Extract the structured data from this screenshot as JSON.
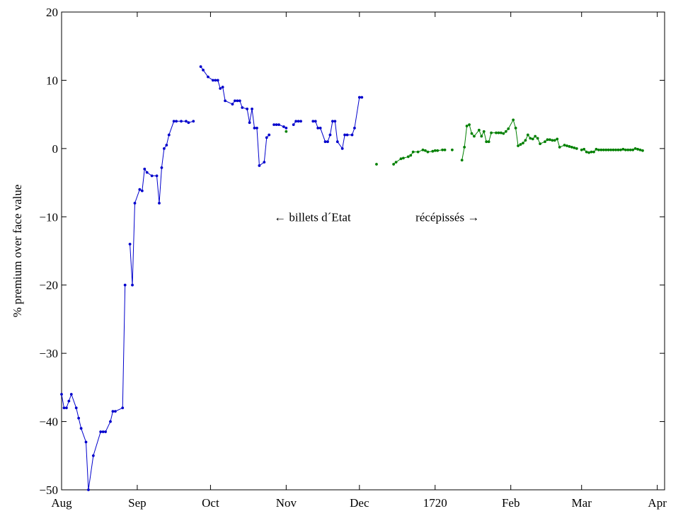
{
  "chart_data": {
    "type": "line",
    "title": "",
    "xlabel": "",
    "ylabel": "% premium over face value",
    "ylim": [
      -50,
      20
    ],
    "yticks": [
      -50,
      -40,
      -30,
      -20,
      -10,
      0,
      10,
      20
    ],
    "xlim": [
      "1719-08-01",
      "1720-04-04"
    ],
    "xticks": [
      {
        "date": "1719-08-01",
        "label": "Aug"
      },
      {
        "date": "1719-09-01",
        "label": "Sep"
      },
      {
        "date": "1719-10-01",
        "label": "Oct"
      },
      {
        "date": "1719-11-01",
        "label": "Nov"
      },
      {
        "date": "1719-12-01",
        "label": "Dec"
      },
      {
        "date": "1720-01-01",
        "label": "1720"
      },
      {
        "date": "1720-02-01",
        "label": "Feb"
      },
      {
        "date": "1720-03-01",
        "label": "Mar"
      },
      {
        "date": "1720-04-01",
        "label": "Apr"
      }
    ],
    "grid": false,
    "annotations": [
      {
        "text": "← billets d´Etat",
        "x": "1719-10-27",
        "y": -10
      },
      {
        "text": "récépissés →",
        "x": "1719-12-24",
        "y": -10
      }
    ],
    "series": [
      {
        "name": "",
        "color": "#0000cc",
        "segments": [
          [
            [
              "1719-08-01",
              -36
            ],
            [
              "1719-08-02",
              -38
            ],
            [
              "1719-08-03",
              -38
            ],
            [
              "1719-08-04",
              -37
            ],
            [
              "1719-08-05",
              -36
            ],
            [
              "1719-08-07",
              -38
            ],
            [
              "1719-08-08",
              -39.5
            ],
            [
              "1719-08-09",
              -41
            ],
            [
              "1719-08-11",
              -43
            ],
            [
              "1719-08-12",
              -50
            ],
            [
              "1719-08-14",
              -45
            ],
            [
              "1719-08-17",
              -41.5
            ],
            [
              "1719-08-18",
              -41.5
            ],
            [
              "1719-08-19",
              -41.5
            ],
            [
              "1719-08-21",
              -40
            ],
            [
              "1719-08-22",
              -38.5
            ],
            [
              "1719-08-23",
              -38.5
            ],
            [
              "1719-08-26",
              -38
            ],
            [
              "1719-08-27",
              -20
            ]
          ],
          [
            [
              "1719-08-29",
              -14
            ],
            [
              "1719-08-30",
              -20
            ],
            [
              "1719-08-31",
              -8
            ],
            [
              "1719-09-02",
              -6
            ],
            [
              "1719-09-03",
              -6.2
            ],
            [
              "1719-09-04",
              -3
            ],
            [
              "1719-09-05",
              -3.5
            ],
            [
              "1719-09-07",
              -4
            ],
            [
              "1719-09-09",
              -4
            ],
            [
              "1719-09-10",
              -8
            ],
            [
              "1719-09-11",
              -2.8
            ],
            [
              "1719-09-12",
              0
            ],
            [
              "1719-09-13",
              0.5
            ],
            [
              "1719-09-14",
              2
            ],
            [
              "1719-09-16",
              4
            ],
            [
              "1719-09-17",
              4
            ],
            [
              "1719-09-19",
              4
            ],
            [
              "1719-09-21",
              4
            ],
            [
              "1719-09-22",
              3.8
            ],
            [
              "1719-09-24",
              4
            ]
          ],
          [
            [
              "1719-09-27",
              12
            ],
            [
              "1719-09-28",
              11.5
            ],
            [
              "1719-09-30",
              10.5
            ],
            [
              "1719-10-02",
              10
            ],
            [
              "1719-10-03",
              10
            ],
            [
              "1719-10-04",
              10
            ],
            [
              "1719-10-05",
              8.8
            ],
            [
              "1719-10-06",
              9
            ],
            [
              "1719-10-07",
              7
            ],
            [
              "1719-10-10",
              6.5
            ],
            [
              "1719-10-11",
              7
            ],
            [
              "1719-10-12",
              7
            ],
            [
              "1719-10-13",
              7
            ],
            [
              "1719-10-14",
              6
            ],
            [
              "1719-10-16",
              5.8
            ],
            [
              "1719-10-17",
              3.8
            ],
            [
              "1719-10-18",
              5.8
            ],
            [
              "1719-10-19",
              3
            ],
            [
              "1719-10-20",
              3
            ],
            [
              "1719-10-21",
              -2.5
            ],
            [
              "1719-10-23",
              -2
            ],
            [
              "1719-10-24",
              1.6
            ],
            [
              "1719-10-25",
              2
            ]
          ],
          [
            [
              "1719-10-27",
              3.5
            ],
            [
              "1719-10-28",
              3.5
            ],
            [
              "1719-10-29",
              3.5
            ],
            [
              "1719-10-31",
              3.2
            ],
            [
              "1719-11-01",
              3
            ]
          ],
          [
            [
              "1719-11-04",
              3.5
            ],
            [
              "1719-11-05",
              4
            ],
            [
              "1719-11-06",
              4
            ],
            [
              "1719-11-07",
              4
            ]
          ],
          [
            [
              "1719-11-12",
              4
            ],
            [
              "1719-11-13",
              4
            ],
            [
              "1719-11-14",
              3
            ],
            [
              "1719-11-15",
              3
            ],
            [
              "1719-11-17",
              1
            ],
            [
              "1719-11-18",
              1
            ],
            [
              "1719-11-19",
              2
            ],
            [
              "1719-11-20",
              4
            ],
            [
              "1719-11-21",
              4
            ],
            [
              "1719-11-22",
              1
            ],
            [
              "1719-11-24",
              0
            ],
            [
              "1719-11-25",
              2
            ],
            [
              "1719-11-26",
              2
            ],
            [
              "1719-11-28",
              2
            ],
            [
              "1719-11-29",
              3
            ],
            [
              "1719-12-01",
              7.5
            ],
            [
              "1719-12-02",
              7.5
            ]
          ]
        ]
      },
      {
        "name": "",
        "color": "#008000",
        "segments": [
          [
            [
              "1719-11-01",
              2.5
            ]
          ],
          [
            [
              "1719-12-08",
              -2.3
            ]
          ],
          [
            [
              "1719-12-15",
              -2.3
            ],
            [
              "1719-12-16",
              -2
            ],
            [
              "1719-12-18",
              -1.5
            ],
            [
              "1719-12-19",
              -1.4
            ],
            [
              "1719-12-21",
              -1.2
            ],
            [
              "1719-12-22",
              -1
            ],
            [
              "1719-12-23",
              -0.5
            ],
            [
              "1719-12-25",
              -0.5
            ],
            [
              "1719-12-27",
              -0.2
            ],
            [
              "1719-12-28",
              -0.3
            ],
            [
              "1719-12-29",
              -0.5
            ],
            [
              "1719-12-31",
              -0.4
            ],
            [
              "1720-01-01",
              -0.3
            ],
            [
              "1720-01-02",
              -0.3
            ],
            [
              "1720-01-04",
              -0.2
            ],
            [
              "1720-01-05",
              -0.2
            ]
          ],
          [
            [
              "1720-01-08",
              -0.2
            ]
          ],
          [
            [
              "1720-01-12",
              -1.7
            ],
            [
              "1720-01-13",
              0.2
            ],
            [
              "1720-01-14",
              3.3
            ],
            [
              "1720-01-15",
              3.5
            ],
            [
              "1720-01-16",
              2.2
            ],
            [
              "1720-01-17",
              1.8
            ],
            [
              "1720-01-19",
              2.7
            ],
            [
              "1720-01-20",
              1.8
            ],
            [
              "1720-01-21",
              2.5
            ],
            [
              "1720-01-22",
              1
            ],
            [
              "1720-01-23",
              1
            ],
            [
              "1720-01-24",
              2.3
            ],
            [
              "1720-01-26",
              2.3
            ],
            [
              "1720-01-27",
              2.3
            ],
            [
              "1720-01-28",
              2.3
            ],
            [
              "1720-01-29",
              2.2
            ],
            [
              "1720-01-30",
              2.5
            ],
            [
              "1720-01-31",
              2.9
            ],
            [
              "1720-02-02",
              4.2
            ],
            [
              "1720-02-03",
              3
            ],
            [
              "1720-02-04",
              0.4
            ],
            [
              "1720-02-05",
              0.6
            ],
            [
              "1720-02-06",
              0.8
            ],
            [
              "1720-02-07",
              1.2
            ],
            [
              "1720-02-08",
              2
            ],
            [
              "1720-02-09",
              1.5
            ],
            [
              "1720-02-10",
              1.4
            ],
            [
              "1720-02-11",
              1.8
            ],
            [
              "1720-02-12",
              1.5
            ],
            [
              "1720-02-13",
              0.7
            ],
            [
              "1720-02-15",
              1
            ],
            [
              "1720-02-16",
              1.3
            ],
            [
              "1720-02-17",
              1.3
            ],
            [
              "1720-02-18",
              1.2
            ],
            [
              "1720-02-19",
              1.2
            ],
            [
              "1720-02-20",
              1.4
            ],
            [
              "1720-02-21",
              0.2
            ],
            [
              "1720-02-23",
              0.5
            ],
            [
              "1720-02-24",
              0.4
            ],
            [
              "1720-02-25",
              0.3
            ],
            [
              "1720-02-26",
              0.2
            ],
            [
              "1720-02-27",
              0.1
            ],
            [
              "1720-02-28",
              0
            ]
          ],
          [
            [
              "1720-03-01",
              -0.2
            ],
            [
              "1720-03-02",
              -0.1
            ],
            [
              "1720-03-03",
              -0.5
            ],
            [
              "1720-03-04",
              -0.6
            ],
            [
              "1720-03-05",
              -0.5
            ],
            [
              "1720-03-06",
              -0.5
            ],
            [
              "1720-03-07",
              -0.1
            ],
            [
              "1720-03-08",
              -0.2
            ],
            [
              "1720-03-09",
              -0.2
            ],
            [
              "1720-03-10",
              -0.2
            ],
            [
              "1720-03-11",
              -0.2
            ],
            [
              "1720-03-12",
              -0.2
            ],
            [
              "1720-03-13",
              -0.2
            ],
            [
              "1720-03-14",
              -0.2
            ],
            [
              "1720-03-15",
              -0.2
            ],
            [
              "1720-03-16",
              -0.2
            ],
            [
              "1720-03-17",
              -0.2
            ],
            [
              "1720-03-18",
              -0.1
            ],
            [
              "1720-03-19",
              -0.2
            ],
            [
              "1720-03-20",
              -0.2
            ],
            [
              "1720-03-21",
              -0.2
            ],
            [
              "1720-03-22",
              -0.2
            ],
            [
              "1720-03-23",
              0
            ],
            [
              "1720-03-24",
              -0.1
            ],
            [
              "1720-03-25",
              -0.2
            ],
            [
              "1720-03-26",
              -0.3
            ]
          ]
        ]
      }
    ]
  }
}
